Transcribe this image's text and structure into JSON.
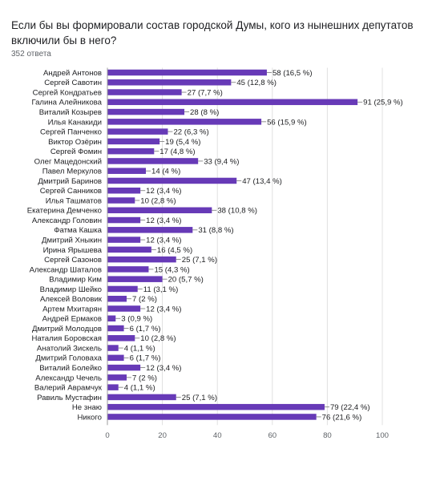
{
  "header": {
    "question": "Если бы вы формировали состав городской Думы, кого из нынешних депутатов включили бы в него?",
    "responses": "352 ответа"
  },
  "colors": {
    "bar": "#673ab7",
    "grid": "#e0e0e0",
    "axis": "#9e9e9e"
  },
  "chart_data": {
    "type": "bar",
    "orientation": "horizontal",
    "categories": [
      "Андрей Антонов",
      "Сергей Савотин",
      "Сергей Кондратьев",
      "Галина Алейникова",
      "Виталий Козырев",
      "Илья Канакиди",
      "Сергей Панченко",
      "Виктор Озёрин",
      "Сергей Фомин",
      "Олег Мацедонский",
      "Павел Меркулов",
      "Дмитрий Баринов",
      "Сергей Санников",
      "Илья Ташматов",
      "Екатерина Демченко",
      "Александр Головин",
      "Фатма Кашка",
      "Дмитрий Хныкин",
      "Ирина Ярышева",
      "Сергей Сазонов",
      "Александр Шаталов",
      "Владимир Ким",
      "Владимир Шейко",
      "Алексей Воловик",
      "Артем Мхитарян",
      "Андрей Ермаков",
      "Дмитрий Молодцов",
      "Наталия Боровская",
      "Анатолий Зискель",
      "Дмитрий Головаха",
      "Виталий Болейко",
      "Александр Чечель",
      "Валерий Аврамчук",
      "Равиль Мустафин",
      "Не знаю",
      "Никого"
    ],
    "values": [
      58,
      45,
      27,
      91,
      28,
      56,
      22,
      19,
      17,
      33,
      14,
      47,
      12,
      10,
      38,
      12,
      31,
      12,
      16,
      25,
      15,
      20,
      11,
      7,
      12,
      3,
      6,
      10,
      4,
      6,
      12,
      7,
      4,
      25,
      79,
      76
    ],
    "labels": [
      "58 (16,5 %)",
      "45 (12,8 %)",
      "27 (7,7 %)",
      "91 (25,9 %)",
      "28 (8 %)",
      "56 (15,9 %)",
      "22 (6,3 %)",
      "19 (5,4 %)",
      "17 (4,8 %)",
      "33 (9,4 %)",
      "14 (4 %)",
      "47 (13,4 %)",
      "12 (3,4 %)",
      "10 (2,8 %)",
      "38 (10,8 %)",
      "12 (3,4 %)",
      "31 (8,8 %)",
      "12 (3,4 %)",
      "16 (4,5 %)",
      "25 (7,1 %)",
      "15 (4,3 %)",
      "20 (5,7 %)",
      "11 (3,1 %)",
      "7 (2 %)",
      "12 (3,4 %)",
      "3 (0,9 %)",
      "6 (1,7 %)",
      "10 (2,8 %)",
      "4 (1,1 %)",
      "6 (1,7 %)",
      "12 (3,4 %)",
      "7 (2 %)",
      "4 (1,1 %)",
      "25 (7,1 %)",
      "79 (22,4 %)",
      "76 (21,6 %)"
    ],
    "xticks": [
      "0",
      "20",
      "40",
      "60",
      "80",
      "100"
    ],
    "xlim": [
      0,
      100
    ],
    "grid": true,
    "legend": false
  }
}
